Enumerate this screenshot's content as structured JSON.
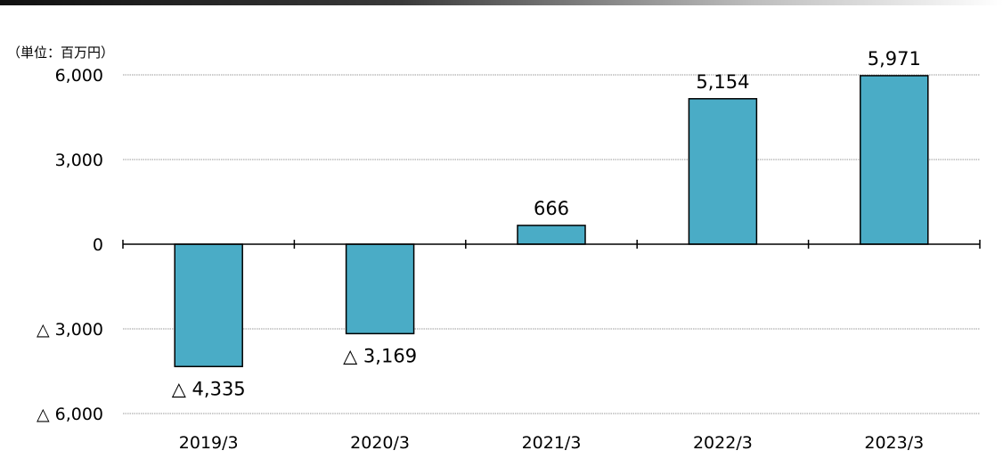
{
  "unit_label": "（単位：百万円）",
  "neg_prefix": "△",
  "colors": {
    "bar": "#4aacc6",
    "bar_stroke": "#000000",
    "grid": "#9a9a9a"
  },
  "chart_data": {
    "type": "bar",
    "categories": [
      "2019/3",
      "2020/3",
      "2021/3",
      "2022/3",
      "2023/3"
    ],
    "values": [
      -4335,
      -3169,
      666,
      5154,
      5971
    ],
    "data_labels": [
      "△ 4,335",
      "△ 3,169",
      "666",
      "5,154",
      "5,971"
    ],
    "ylim": [
      -6000,
      6000
    ],
    "yticks": [
      6000,
      3000,
      0,
      -3000,
      -6000
    ],
    "ytick_labels": [
      "6,000",
      "3,000",
      "0",
      "△ 3,000",
      "△ 6,000"
    ],
    "grid": true,
    "legend": "none"
  }
}
